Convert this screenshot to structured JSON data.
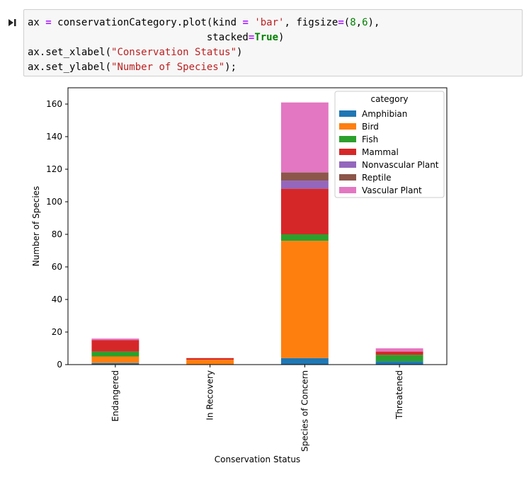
{
  "code": {
    "lines": [
      [
        {
          "t": "ax "
        },
        {
          "t": "=",
          "c": "op"
        },
        {
          "t": " conservationCategory.plot(kind "
        },
        {
          "t": "=",
          "c": "op"
        },
        {
          "t": " "
        },
        {
          "t": "'bar'",
          "c": "str"
        },
        {
          "t": ", figsize"
        },
        {
          "t": "=",
          "c": "op"
        },
        {
          "t": "("
        },
        {
          "t": "8",
          "c": "num"
        },
        {
          "t": ","
        },
        {
          "t": "6",
          "c": "num"
        },
        {
          "t": "),"
        }
      ],
      [
        {
          "t": "                              stacked"
        },
        {
          "t": "=",
          "c": "op"
        },
        {
          "t": "True",
          "c": "kw"
        },
        {
          "t": ")"
        }
      ],
      [
        {
          "t": "ax.set_xlabel("
        },
        {
          "t": "\"Conservation Status\"",
          "c": "str"
        },
        {
          "t": ")"
        }
      ],
      [
        {
          "t": "ax.set_ylabel("
        },
        {
          "t": "\"Number of Species\"",
          "c": "str"
        },
        {
          "t": ");"
        }
      ]
    ]
  },
  "chart_data": {
    "type": "bar",
    "stacked": true,
    "categories": [
      "Endangered",
      "In Recovery",
      "Species of Concern",
      "Threatened"
    ],
    "series": [
      {
        "name": "Amphibian",
        "color": "#1f77b4",
        "values": [
          1,
          0,
          4,
          2
        ]
      },
      {
        "name": "Bird",
        "color": "#ff7f0e",
        "values": [
          4,
          3,
          72,
          0
        ]
      },
      {
        "name": "Fish",
        "color": "#2ca02c",
        "values": [
          3,
          0,
          4,
          4
        ]
      },
      {
        "name": "Mammal",
        "color": "#d62728",
        "values": [
          7,
          1,
          28,
          2
        ]
      },
      {
        "name": "Nonvascular Plant",
        "color": "#9467bd",
        "values": [
          0,
          0,
          5,
          0
        ]
      },
      {
        "name": "Reptile",
        "color": "#8c564b",
        "values": [
          0,
          0,
          5,
          0
        ]
      },
      {
        "name": "Vascular Plant",
        "color": "#e377c2",
        "values": [
          1,
          0,
          43,
          2
        ]
      }
    ],
    "xlabel": "Conservation Status",
    "ylabel": "Number of Species",
    "ylim": [
      0,
      170
    ],
    "yticks": [
      0,
      20,
      40,
      60,
      80,
      100,
      120,
      140,
      160
    ],
    "legend_title": "category",
    "legend_position": "top-right"
  }
}
